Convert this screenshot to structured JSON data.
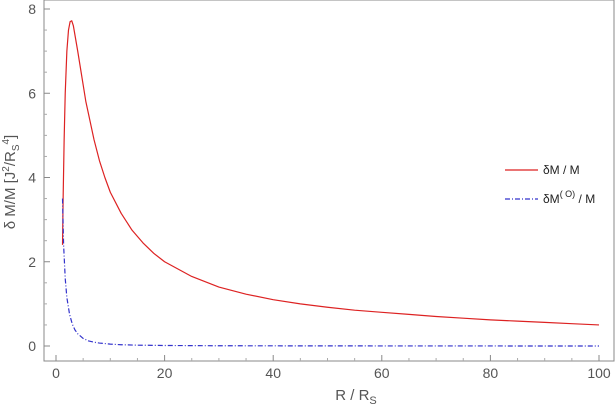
{
  "chart_data": {
    "type": "line",
    "title": "",
    "xlabel": {
      "main": "R / R",
      "sub": "S"
    },
    "ylabel": {
      "main": "δ  M/M [J",
      "sup1": "2",
      "mid": "/R",
      "sub": "S",
      "sup2": "4",
      "end": "]"
    },
    "xlim": [
      0,
      100
    ],
    "ylim": [
      0,
      8
    ],
    "x_ticks": [
      "0",
      "20",
      "40",
      "60",
      "80",
      "100"
    ],
    "y_ticks": [
      "0",
      "2",
      "4",
      "6",
      "8"
    ],
    "grid": false,
    "legend_position": "right",
    "series": [
      {
        "name": "δM / M",
        "name_parts": {
          "main": "δM / M"
        },
        "color": "#dd2222",
        "style": "solid",
        "x": [
          1.2,
          1.3,
          1.5,
          1.7,
          2.0,
          2.3,
          2.6,
          2.9,
          3.2,
          3.6,
          4.0,
          4.5,
          5.0,
          5.5,
          6,
          7,
          8,
          9,
          10,
          12,
          14,
          16,
          18,
          20,
          25,
          30,
          35,
          40,
          45,
          50,
          55,
          60,
          65,
          70,
          75,
          80,
          85,
          90,
          95,
          100
        ],
        "y": [
          2.4,
          3.4,
          4.9,
          6.0,
          7.0,
          7.5,
          7.7,
          7.72,
          7.6,
          7.3,
          7.0,
          6.6,
          6.2,
          5.8,
          5.5,
          4.9,
          4.4,
          4.0,
          3.65,
          3.15,
          2.75,
          2.45,
          2.2,
          2.0,
          1.65,
          1.4,
          1.23,
          1.1,
          1.0,
          0.92,
          0.85,
          0.8,
          0.75,
          0.7,
          0.66,
          0.62,
          0.59,
          0.56,
          0.53,
          0.5
        ]
      },
      {
        "name": "δM^(O) / M",
        "name_parts": {
          "main": "δM",
          "sup": "( O)",
          "end": " / M"
        },
        "color": "#3333cc",
        "style": "dashdot",
        "x": [
          1.2,
          1.4,
          1.7,
          2.0,
          2.5,
          3.0,
          3.5,
          4.0,
          5.0,
          6.0,
          7.0,
          8.0,
          10,
          12,
          15,
          20,
          30,
          40,
          60,
          80,
          100
        ],
        "y": [
          3.5,
          2.4,
          1.6,
          1.15,
          0.75,
          0.52,
          0.38,
          0.29,
          0.18,
          0.12,
          0.09,
          0.07,
          0.045,
          0.03,
          0.02,
          0.012,
          0.006,
          0.004,
          0.002,
          0.001,
          0.0005
        ]
      }
    ]
  }
}
